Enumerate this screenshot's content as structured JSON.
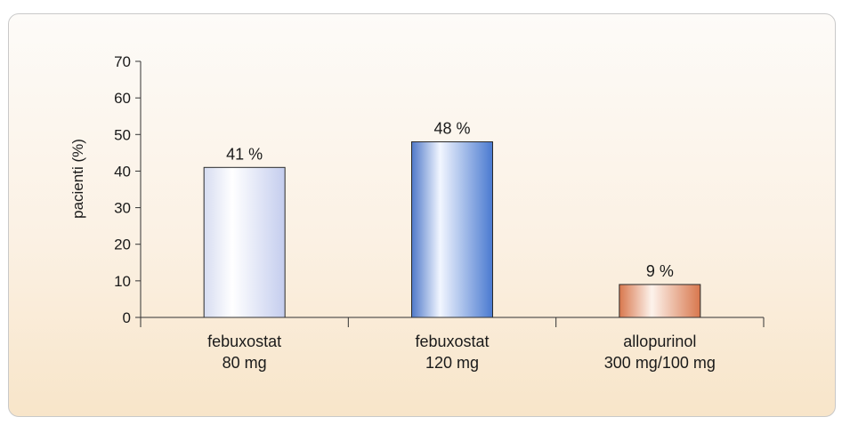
{
  "chart_data": {
    "type": "bar",
    "ylabel": "pacienti (%)",
    "ylim": [
      0,
      70
    ],
    "yticks": [
      0,
      10,
      20,
      30,
      40,
      50,
      60,
      70
    ],
    "categories": [
      {
        "line1": "febuxostat",
        "line2": "80 mg"
      },
      {
        "line1": "febuxostat",
        "line2": "120 mg"
      },
      {
        "line1": "allopurinol",
        "line2": "300 mg/100 mg"
      }
    ],
    "values": [
      41,
      48,
      9
    ],
    "data_labels": [
      "41 %",
      "48 %",
      "9 %"
    ],
    "bar_styles": [
      "light-blue",
      "blue",
      "orange"
    ]
  }
}
